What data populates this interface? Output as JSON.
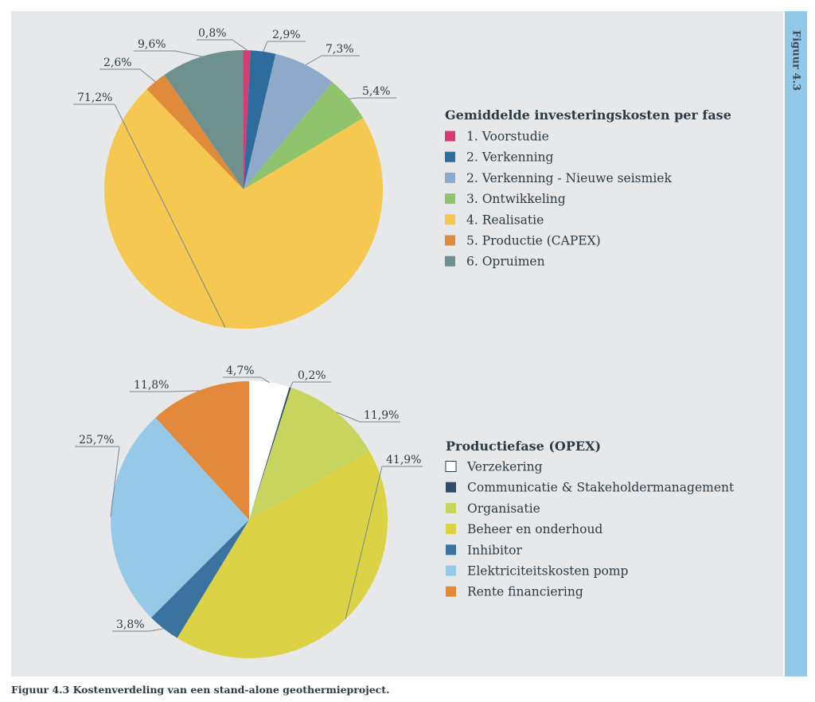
{
  "caption": "Figuur 4.3 Kostenverdeling van een stand-alone geothermieproject.",
  "figure_tab": "Figuur 4.3",
  "chart_data": [
    {
      "type": "pie",
      "title": "Gemiddelde investeringskosten per fase",
      "legend_position": "right",
      "slices": [
        {
          "name": "1. Voorstudie",
          "value": 0.8,
          "label": "0,8%",
          "color": "#d63c74"
        },
        {
          "name": "2. Verkenning",
          "value": 2.9,
          "label": "2,9%",
          "color": "#2e6c9e"
        },
        {
          "name": "2. Verkenning - Nieuwe seismiek",
          "value": 7.3,
          "label": "7,3%",
          "color": "#8ea9c9"
        },
        {
          "name": "3. Ontwikkeling",
          "value": 5.4,
          "label": "5,4%",
          "color": "#90c46c"
        },
        {
          "name": "4. Realisatie",
          "value": 71.2,
          "label": "71,2%",
          "color": "#f4c851"
        },
        {
          "name": "5. Productie (CAPEX)",
          "value": 2.6,
          "label": "2,6%",
          "color": "#e08a3c"
        },
        {
          "name": "6. Opruimen",
          "value": 9.6,
          "label": "9,6%",
          "color": "#6e9190"
        }
      ]
    },
    {
      "type": "pie",
      "title": "Productiefase (OPEX)",
      "legend_position": "right",
      "slices": [
        {
          "name": "Verzekering",
          "value": 4.7,
          "label": "4,7%",
          "color": "#ffffff"
        },
        {
          "name": "Communicatie & Stakeholdermanagement",
          "value": 0.2,
          "label": "0,2%",
          "color": "#2f4b67"
        },
        {
          "name": "Organisatie",
          "value": 11.9,
          "label": "11,9%",
          "color": "#c7d55f"
        },
        {
          "name": "Beheer en onderhoud",
          "value": 41.9,
          "label": "41,9%",
          "color": "#dbd245"
        },
        {
          "name": "Inhibitor",
          "value": 3.8,
          "label": "3,8%",
          "color": "#3a72a0"
        },
        {
          "name": "Elektriciteitskosten pomp",
          "value": 25.7,
          "label": "25,7%",
          "color": "#96c9e7"
        },
        {
          "name": "Rente financiering",
          "value": 11.8,
          "label": "11,8%",
          "color": "#e2893b"
        }
      ]
    }
  ]
}
